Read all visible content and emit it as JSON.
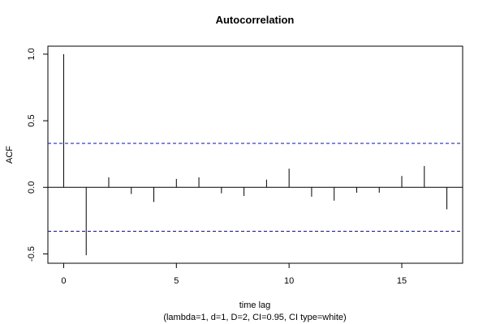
{
  "chart_data": {
    "type": "bar",
    "title": "Autocorrelation",
    "xlabel": "time lag",
    "subtitle": "(lambda=1, d=1, D=2, CI=0.95, CI type=white)",
    "ylabel": "ACF",
    "xlim": [
      -0.7,
      17.7
    ],
    "ylim": [
      -0.57,
      1.06
    ],
    "xticks": [
      0,
      5,
      10,
      15
    ],
    "yticks": [
      -0.5,
      0.0,
      0.5,
      1.0
    ],
    "ytick_labels": [
      "-0.5",
      "0.0",
      "0.5",
      "1.0"
    ],
    "confidence_bound": 0.33,
    "zero_line": 0,
    "lags": [
      0,
      1,
      2,
      3,
      4,
      5,
      6,
      7,
      8,
      9,
      10,
      11,
      12,
      13,
      14,
      15,
      16,
      17
    ],
    "values": [
      1.0,
      -0.51,
      0.075,
      -0.05,
      -0.11,
      0.063,
      0.075,
      -0.045,
      -0.065,
      0.058,
      0.14,
      -0.07,
      -0.1,
      -0.04,
      -0.04,
      0.085,
      0.16,
      -0.165
    ],
    "colors": {
      "bars": "#000000",
      "bounds": "#0000ff",
      "frame": "#000000"
    },
    "grid": false
  }
}
